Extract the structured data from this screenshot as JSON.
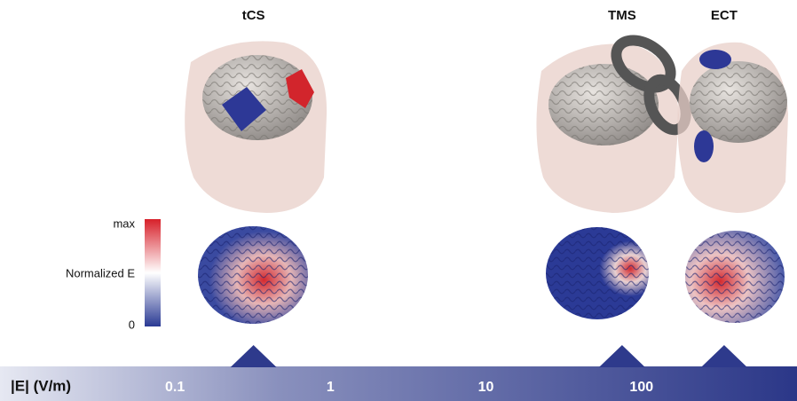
{
  "chart_data": {
    "type": "marker",
    "x_label": "|E| (V/m)",
    "categories": [
      "tCS",
      "TMS",
      "ECT"
    ],
    "values": [
      0.32,
      75,
      340
    ],
    "xlim": [
      0.0075,
      1000
    ],
    "xticks": [
      0.1,
      1,
      10,
      100
    ],
    "log_x": true,
    "color": "#2e3a8c",
    "colorbar": {
      "label": "Normalized E",
      "max_label": "max",
      "min": 0
    }
  }
}
